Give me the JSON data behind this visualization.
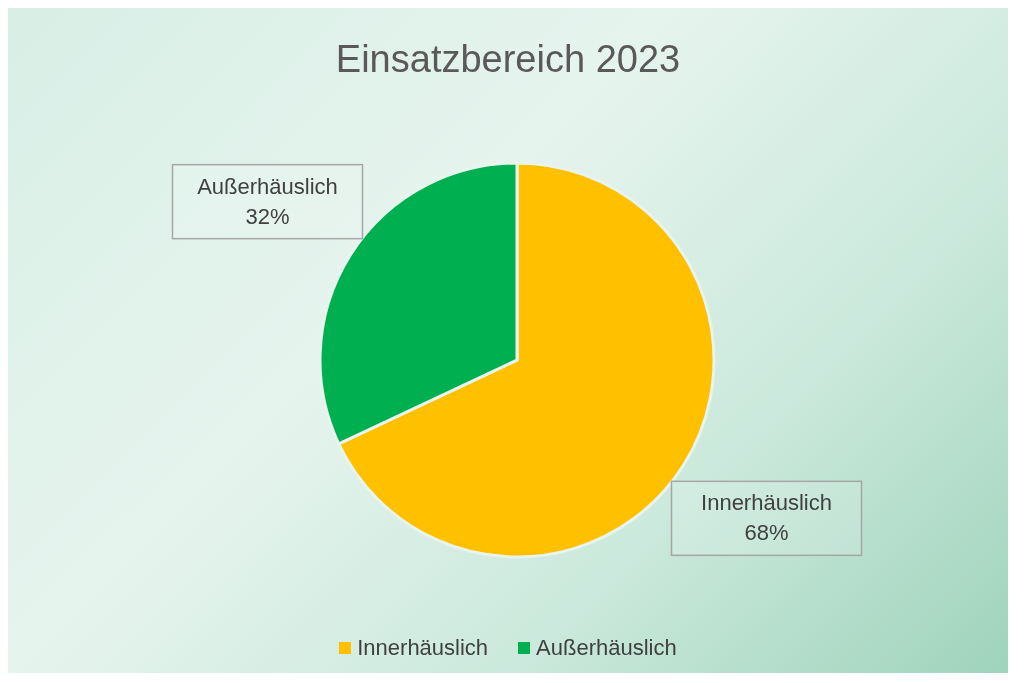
{
  "chart_data": {
    "type": "pie",
    "title": "Einsatzbereich 2023",
    "categories": [
      "Innerhäuslich",
      "Außerhäuslich"
    ],
    "values": [
      68,
      32
    ],
    "value_labels": [
      "68%",
      "32%"
    ],
    "colors": [
      "#ffc000",
      "#00b050"
    ],
    "legend": "bottom"
  }
}
